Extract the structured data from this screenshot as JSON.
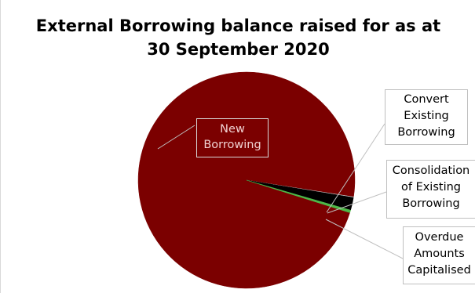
{
  "chart_data": {
    "type": "pie",
    "title_lines": [
      "External Borrowing balance raised for as at",
      "30 September 2020"
    ],
    "labels": [
      "New Borrowing",
      "Convert Existing Borrowing",
      "Consolidation of Existing Borrowing",
      "Overdue Amounts Capitalised"
    ],
    "values": [
      97.6,
      0.1,
      1.9,
      0.4
    ],
    "colors": [
      "#7b0000",
      "#c7c7c7",
      "#000000",
      "#4db848"
    ],
    "label_lines": [
      [
        "New",
        "Borrowing"
      ],
      [
        "Convert",
        "Existing",
        "Borrowing"
      ],
      [
        "Consolidation",
        "of Existing",
        "Borrowing"
      ],
      [
        "Overdue",
        "Amounts",
        "Capitalised"
      ]
    ],
    "legend": "none"
  }
}
